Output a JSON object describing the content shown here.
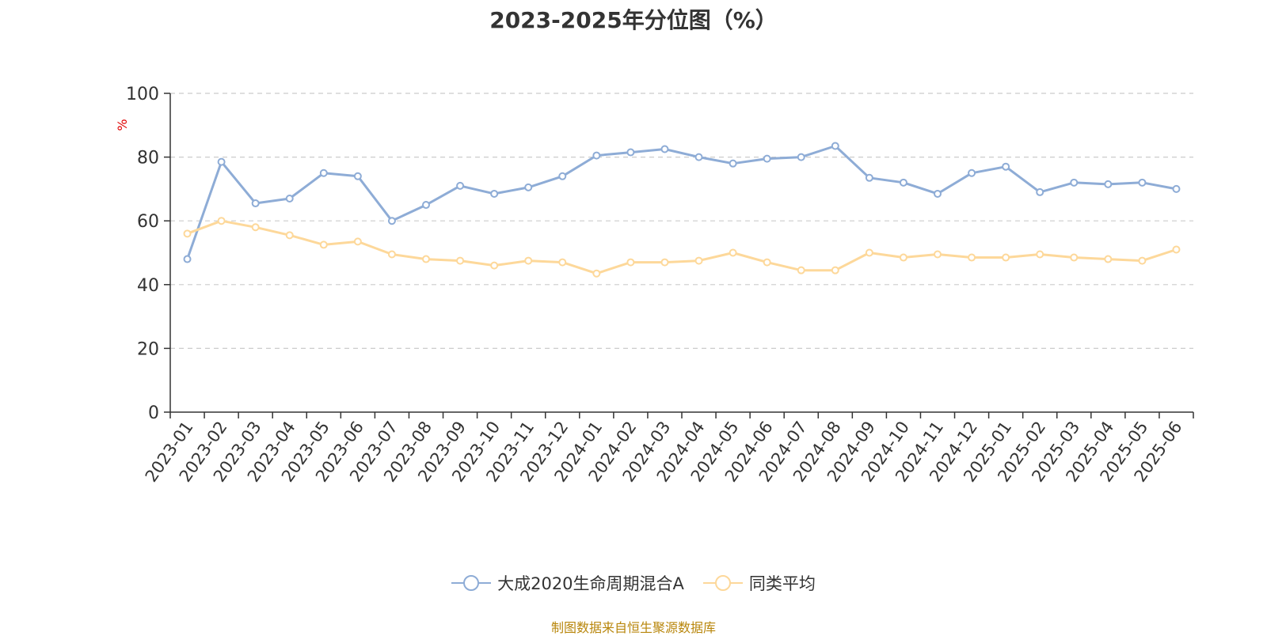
{
  "title": "2023-2025年分位图（%）",
  "source": "制图数据来自恒生聚源数据库",
  "colors": {
    "series_a": "#8eacd6",
    "series_b": "#fdd89a",
    "axis": "#333333",
    "grid": "#cccccc",
    "unit": "#e00000"
  },
  "chart_data": {
    "type": "line",
    "title": "2023-2025年分位图（%）",
    "ylabel": "%",
    "xlabel": "",
    "ylim": [
      0,
      100
    ],
    "yticks": [
      0,
      20,
      40,
      60,
      80,
      100
    ],
    "grid": true,
    "legend_position": "bottom",
    "categories": [
      "2023-01",
      "2023-02",
      "2023-03",
      "2023-04",
      "2023-05",
      "2023-06",
      "2023-07",
      "2023-08",
      "2023-09",
      "2023-10",
      "2023-11",
      "2023-12",
      "2024-01",
      "2024-02",
      "2024-03",
      "2024-04",
      "2024-05",
      "2024-06",
      "2024-07",
      "2024-08",
      "2024-09",
      "2024-10",
      "2024-11",
      "2024-12",
      "2025-01",
      "2025-02",
      "2025-03",
      "2025-04",
      "2025-05",
      "2025-06"
    ],
    "series": [
      {
        "name": "大成2020生命周期混合A",
        "values": [
          48,
          78.5,
          65.5,
          67,
          75,
          74,
          60,
          65,
          71,
          68.5,
          70.5,
          74,
          80.5,
          81.5,
          82.5,
          80,
          78,
          79.5,
          80,
          83.5,
          73.5,
          72,
          68.5,
          75,
          77,
          69,
          72,
          71.5,
          72,
          70
        ]
      },
      {
        "name": "同类平均",
        "values": [
          56,
          60,
          58,
          55.5,
          52.5,
          53.5,
          49.5,
          48,
          47.5,
          46,
          47.5,
          47,
          43.5,
          47,
          47,
          47.5,
          50,
          47,
          44.5,
          44.5,
          50,
          48.5,
          49.5,
          48.5,
          48.5,
          49.5,
          48.5,
          48,
          47.5,
          51
        ]
      }
    ]
  }
}
